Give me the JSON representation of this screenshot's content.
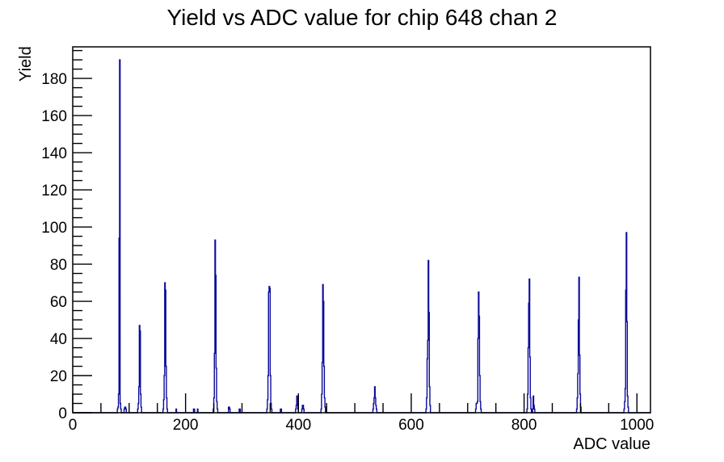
{
  "window": {
    "background_color": "#ffffff"
  },
  "chart_data": {
    "type": "bar",
    "subtype": "histogram-step-outline",
    "title": "Yield vs ADC value for chip 648 chan 2",
    "xlabel": "ADC value",
    "ylabel": "Yield",
    "line_color": "#0b0b9a",
    "axis_color": "#000000",
    "grid": false,
    "legend": "none",
    "x_axis": {
      "min": 0,
      "max": 1024,
      "major_ticks": [
        0,
        200,
        400,
        600,
        800,
        1000
      ],
      "minor_step": 50
    },
    "y_axis": {
      "min": 0,
      "max": 197,
      "major_ticks": [
        0,
        20,
        40,
        60,
        80,
        100,
        120,
        140,
        160,
        180
      ],
      "minor_step": 5
    },
    "bins_note": "sparse nonzero histogram bins as [adc_value, yield]",
    "bins": [
      [
        79,
        2
      ],
      [
        80,
        3
      ],
      [
        81,
        10
      ],
      [
        82,
        94
      ],
      [
        83,
        190
      ],
      [
        84,
        5
      ],
      [
        85,
        2
      ],
      [
        91,
        2
      ],
      [
        92,
        3
      ],
      [
        93,
        3
      ],
      [
        94,
        2
      ],
      [
        115,
        2
      ],
      [
        116,
        5
      ],
      [
        117,
        14
      ],
      [
        118,
        47
      ],
      [
        119,
        44
      ],
      [
        120,
        10
      ],
      [
        121,
        3
      ],
      [
        160,
        2
      ],
      [
        161,
        7
      ],
      [
        162,
        20
      ],
      [
        163,
        70
      ],
      [
        164,
        66
      ],
      [
        165,
        25
      ],
      [
        166,
        8
      ],
      [
        167,
        2
      ],
      [
        183,
        2
      ],
      [
        214,
        2
      ],
      [
        215,
        2
      ],
      [
        221,
        2
      ],
      [
        249,
        2
      ],
      [
        250,
        8
      ],
      [
        251,
        32
      ],
      [
        252,
        93
      ],
      [
        253,
        74
      ],
      [
        254,
        24
      ],
      [
        255,
        6
      ],
      [
        256,
        2
      ],
      [
        276,
        3
      ],
      [
        277,
        3
      ],
      [
        278,
        2
      ],
      [
        295,
        2
      ],
      [
        296,
        2
      ],
      [
        344,
        2
      ],
      [
        345,
        7
      ],
      [
        346,
        20
      ],
      [
        347,
        65
      ],
      [
        348,
        68
      ],
      [
        349,
        67
      ],
      [
        350,
        20
      ],
      [
        351,
        5
      ],
      [
        352,
        2
      ],
      [
        368,
        2
      ],
      [
        369,
        2
      ],
      [
        395,
        2
      ],
      [
        396,
        4
      ],
      [
        397,
        9
      ],
      [
        398,
        5
      ],
      [
        399,
        2
      ],
      [
        406,
        2
      ],
      [
        407,
        4
      ],
      [
        408,
        4
      ],
      [
        409,
        2
      ],
      [
        440,
        2
      ],
      [
        441,
        10
      ],
      [
        442,
        27
      ],
      [
        443,
        69
      ],
      [
        444,
        60
      ],
      [
        445,
        25
      ],
      [
        446,
        8
      ],
      [
        447,
        3
      ],
      [
        532,
        2
      ],
      [
        533,
        5
      ],
      [
        534,
        8
      ],
      [
        535,
        14
      ],
      [
        536,
        8
      ],
      [
        537,
        4
      ],
      [
        538,
        2
      ],
      [
        626,
        2
      ],
      [
        627,
        8
      ],
      [
        628,
        29
      ],
      [
        629,
        39
      ],
      [
        630,
        82
      ],
      [
        631,
        54
      ],
      [
        632,
        14
      ],
      [
        633,
        4
      ],
      [
        714,
        2
      ],
      [
        715,
        5
      ],
      [
        716,
        5
      ],
      [
        717,
        6
      ],
      [
        718,
        40
      ],
      [
        719,
        65
      ],
      [
        720,
        52
      ],
      [
        721,
        20
      ],
      [
        722,
        6
      ],
      [
        723,
        2
      ],
      [
        805,
        2
      ],
      [
        806,
        10
      ],
      [
        807,
        35
      ],
      [
        808,
        59
      ],
      [
        809,
        72
      ],
      [
        810,
        30
      ],
      [
        811,
        8
      ],
      [
        812,
        2
      ],
      [
        815,
        2
      ],
      [
        816,
        9
      ],
      [
        817,
        4
      ],
      [
        818,
        2
      ],
      [
        893,
        2
      ],
      [
        894,
        8
      ],
      [
        895,
        21
      ],
      [
        896,
        50
      ],
      [
        897,
        73
      ],
      [
        898,
        31
      ],
      [
        899,
        10
      ],
      [
        900,
        3
      ],
      [
        977,
        2
      ],
      [
        978,
        6
      ],
      [
        979,
        13
      ],
      [
        980,
        66
      ],
      [
        981,
        97
      ],
      [
        982,
        49
      ],
      [
        983,
        9
      ],
      [
        984,
        3
      ]
    ]
  }
}
